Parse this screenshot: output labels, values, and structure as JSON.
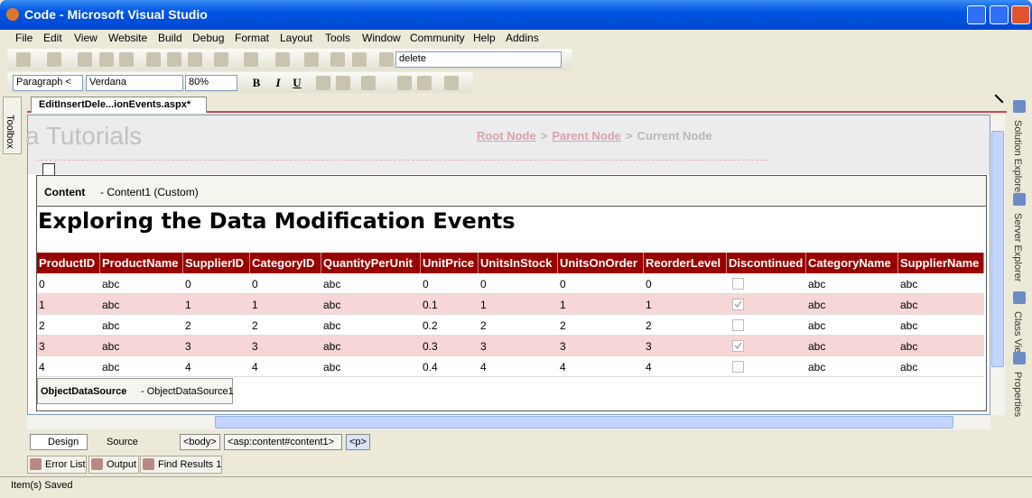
{
  "window": {
    "title": "Code - Microsoft Visual Studio"
  },
  "menu": [
    "File",
    "Edit",
    "View",
    "Website",
    "Build",
    "Debug",
    "Format",
    "Layout",
    "Tools",
    "Window",
    "Community",
    "Help",
    "Addins"
  ],
  "toolbar": {
    "search": "delete"
  },
  "format_bar": {
    "block": "Paragraph <",
    "font": "Verdana",
    "size": "80%",
    "bold": "B",
    "italic": "I",
    "underline": "U"
  },
  "document_tab": "EditInsertDele...ionEvents.aspx*",
  "left_tools": [
    "Toolbox"
  ],
  "right_tools": [
    "Solution Explorer",
    "Server Explorer",
    "Class View",
    "Properties"
  ],
  "page": {
    "site_title": "a Tutorials",
    "breadcrumb": [
      "Root Node",
      "Parent Node",
      "Current Node"
    ],
    "breadcrumb_separator": ">"
  },
  "content": {
    "label": "Content",
    "detail": "- Content1 (Custom)"
  },
  "heading": "Exploring the Data Modification Events",
  "table": {
    "columns": [
      "ProductID",
      "ProductName",
      "SupplierID",
      "CategoryID",
      "QuantityPerUnit",
      "UnitPrice",
      "UnitsInStock",
      "UnitsOnOrder",
      "ReorderLevel",
      "Discontinued",
      "CategoryName",
      "SupplierName"
    ],
    "rows": [
      [
        "0",
        "abc",
        "0",
        "0",
        "abc",
        "0",
        "0",
        "0",
        "0",
        false,
        "abc",
        "abc"
      ],
      [
        "1",
        "abc",
        "1",
        "1",
        "abc",
        "0.1",
        "1",
        "1",
        "1",
        true,
        "abc",
        "abc"
      ],
      [
        "2",
        "abc",
        "2",
        "2",
        "abc",
        "0.2",
        "2",
        "2",
        "2",
        false,
        "abc",
        "abc"
      ],
      [
        "3",
        "abc",
        "3",
        "3",
        "abc",
        "0.3",
        "3",
        "3",
        "3",
        true,
        "abc",
        "abc"
      ],
      [
        "4",
        "abc",
        "4",
        "4",
        "abc",
        "0.4",
        "4",
        "4",
        "4",
        false,
        "abc",
        "abc"
      ]
    ]
  },
  "datasource": {
    "label": "ObjectDataSource",
    "detail": "- ObjectDataSource1"
  },
  "view_tabs": [
    "Design",
    "Source"
  ],
  "tag_path": [
    "<body>",
    "<asp:content#content1>",
    "<p>"
  ],
  "output_tabs": [
    "Error List",
    "Output",
    "Find Results 1"
  ],
  "status": "Item(s) Saved"
}
